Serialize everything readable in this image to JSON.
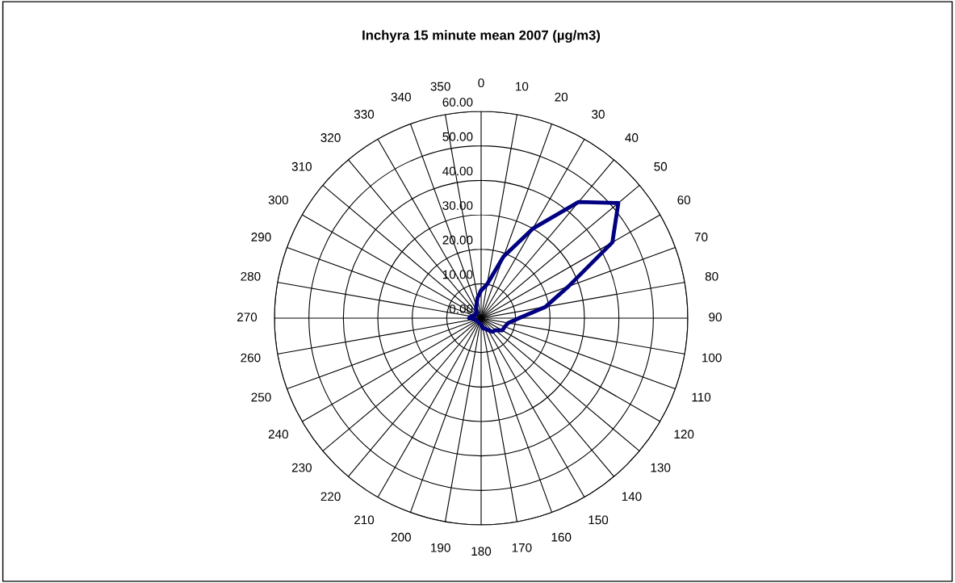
{
  "chart_data": {
    "type": "radar",
    "title": "Inchyra 15 minute mean 2007 (µg/m3)",
    "categories": [
      "0",
      "10",
      "20",
      "30",
      "40",
      "50",
      "60",
      "70",
      "80",
      "90",
      "100",
      "110",
      "120",
      "130",
      "140",
      "150",
      "160",
      "170",
      "180",
      "190",
      "200",
      "210",
      "220",
      "230",
      "240",
      "250",
      "260",
      "270",
      "280",
      "290",
      "300",
      "310",
      "320",
      "330",
      "340",
      "350"
    ],
    "series": [
      {
        "color": "#000080",
        "values": [
          8,
          10,
          19,
          30,
          44,
          52,
          44,
          27,
          19,
          11,
          8,
          7.3,
          7.1,
          5.4,
          5.2,
          4,
          3.2,
          3,
          2,
          1.5,
          1.5,
          1.5,
          1.5,
          1.5,
          1.5,
          1.5,
          2,
          3.5,
          3,
          2,
          2,
          2,
          2,
          3,
          4,
          6
        ]
      }
    ],
    "ylim": [
      0,
      60
    ],
    "yticks": [
      {
        "value": 0,
        "label": "0.00"
      },
      {
        "value": 10,
        "label": "10.00"
      },
      {
        "value": 20,
        "label": "20.00"
      },
      {
        "value": 30,
        "label": "30.00"
      },
      {
        "value": 40,
        "label": "40.00"
      },
      {
        "value": 50,
        "label": "50.00"
      },
      {
        "value": 60,
        "label": "60.00"
      }
    ],
    "grid": true,
    "marker": "none",
    "line_style": "solid"
  }
}
